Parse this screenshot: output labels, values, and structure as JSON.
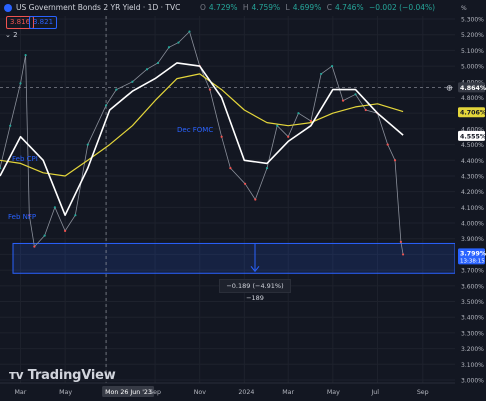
{
  "header": {
    "symbol_title": "US Government Bonds 2 YR Yield · 1D · TVC",
    "open": "4.729%",
    "high": "4.759%",
    "low": "4.699%",
    "close": "4.746%",
    "change": "−0.002 (−0.04%)",
    "bid": "3.816",
    "ask": "3.821",
    "indicator_count": "2",
    "o_label": "O",
    "h_label": "H",
    "l_label": "L",
    "c_label": "C"
  },
  "annotations": {
    "dec_fomc": "Dec FOMC",
    "feb_cpi": "Feb CPI",
    "feb_nfp": "Feb NFP",
    "measure": "−0.189 (−4.91%) −189"
  },
  "price_labels": {
    "crosshair": "4.864%",
    "ma1": "4.706%",
    "ma2": "4.555%",
    "last": "3.799%",
    "countdown": "13:38:15"
  },
  "x_labels": {
    "highlight": "Mon 26 Jun '23"
  },
  "branding": {
    "logo_text": "TradingView"
  },
  "colors": {
    "background": "#131722",
    "up": "#26a69a",
    "down": "#ef5350",
    "ma_fast": "#ffffff",
    "ma_slow": "#e4d63b",
    "zone": "#2962ff",
    "grid": "#1e222d"
  },
  "chart_data": {
    "type": "line",
    "title": "US Government Bonds 2 YR Yield · 1D · TVC",
    "ylim": [
      3.0,
      5.3
    ],
    "y_unit": "%",
    "y_ticks": [
      5.3,
      5.2,
      5.1,
      5.0,
      4.9,
      4.8,
      4.7,
      4.6,
      4.5,
      4.4,
      4.3,
      4.2,
      4.1,
      4.0,
      3.9,
      3.8,
      3.7,
      3.6,
      3.5,
      3.4,
      3.3,
      3.2,
      3.1,
      3.0
    ],
    "y_tick_labels": [
      "5.300%",
      "5.200%",
      "5.100%",
      "5.000%",
      "4.900%",
      "4.800%",
      "4.700%",
      "4.600%",
      "4.500%",
      "4.400%",
      "4.300%",
      "4.200%",
      "4.100%",
      "4.000%",
      "3.900%",
      "3.800%",
      "3.700%",
      "3.600%",
      "3.500%",
      "3.400%",
      "3.300%",
      "3.200%",
      "3.100%",
      "3.000%"
    ],
    "x_tick_labels": [
      "Mar",
      "May",
      "Mon 26 Jun '23",
      "Sep",
      "Nov",
      "2024",
      "Mar",
      "May",
      "Jul",
      "Sep"
    ],
    "x_ticks": [
      "2023-03-01",
      "2023-05-01",
      "2023-06-26",
      "2023-09-01",
      "2023-11-01",
      "2024-01-01",
      "2024-03-01",
      "2024-05-01",
      "2024-07-01",
      "2024-09-01"
    ],
    "xlim": [
      "2023-02-01",
      "2024-10-15"
    ],
    "series": [
      {
        "name": "price",
        "x": [
          "2023-02-01",
          "2023-02-15",
          "2023-03-01",
          "2023-03-08",
          "2023-03-13",
          "2023-03-20",
          "2023-04-03",
          "2023-04-17",
          "2023-05-01",
          "2023-05-15",
          "2023-06-01",
          "2023-06-26",
          "2023-07-10",
          "2023-08-01",
          "2023-08-21",
          "2023-09-05",
          "2023-09-20",
          "2023-10-03",
          "2023-10-18",
          "2023-11-01",
          "2023-11-15",
          "2023-12-01",
          "2023-12-13",
          "2024-01-02",
          "2024-01-16",
          "2024-02-01",
          "2024-02-15",
          "2024-03-01",
          "2024-03-15",
          "2024-04-01",
          "2024-04-15",
          "2024-04-30",
          "2024-05-15",
          "2024-06-01",
          "2024-06-15",
          "2024-07-01",
          "2024-07-15",
          "2024-07-25",
          "2024-08-02",
          "2024-08-05"
        ],
        "values": [
          4.35,
          4.62,
          4.89,
          5.07,
          4.05,
          3.85,
          3.92,
          4.1,
          3.95,
          4.05,
          4.5,
          4.75,
          4.85,
          4.9,
          4.98,
          5.02,
          5.12,
          5.15,
          5.22,
          5.0,
          4.85,
          4.55,
          4.35,
          4.25,
          4.15,
          4.35,
          4.62,
          4.55,
          4.7,
          4.65,
          4.95,
          5.0,
          4.78,
          4.82,
          4.72,
          4.7,
          4.5,
          4.4,
          3.88,
          3.8
        ]
      },
      {
        "name": "ma_fast",
        "x": [
          "2023-02-01",
          "2023-03-01",
          "2023-04-01",
          "2023-05-01",
          "2023-06-01",
          "2023-07-01",
          "2023-08-01",
          "2023-09-01",
          "2023-10-01",
          "2023-11-01",
          "2023-12-01",
          "2024-01-01",
          "2024-02-01",
          "2024-03-01",
          "2024-04-01",
          "2024-05-01",
          "2024-06-01",
          "2024-07-01",
          "2024-08-05"
        ],
        "values": [
          4.3,
          4.55,
          4.4,
          4.05,
          4.35,
          4.72,
          4.84,
          4.92,
          5.02,
          5.0,
          4.8,
          4.4,
          4.38,
          4.52,
          4.62,
          4.85,
          4.85,
          4.7,
          4.56
        ]
      },
      {
        "name": "ma_slow",
        "x": [
          "2023-02-01",
          "2023-03-01",
          "2023-04-01",
          "2023-05-01",
          "2023-06-01",
          "2023-07-01",
          "2023-08-01",
          "2023-09-01",
          "2023-10-01",
          "2023-11-01",
          "2023-12-01",
          "2024-01-01",
          "2024-02-01",
          "2024-03-01",
          "2024-04-01",
          "2024-05-01",
          "2024-06-01",
          "2024-07-01",
          "2024-08-05"
        ],
        "values": [
          4.4,
          4.38,
          4.32,
          4.3,
          4.4,
          4.5,
          4.62,
          4.78,
          4.92,
          4.95,
          4.85,
          4.72,
          4.64,
          4.62,
          4.64,
          4.7,
          4.74,
          4.76,
          4.71
        ]
      }
    ],
    "zone": {
      "from": 3.68,
      "to": 3.87
    },
    "crosshair_value": 4.864
  }
}
